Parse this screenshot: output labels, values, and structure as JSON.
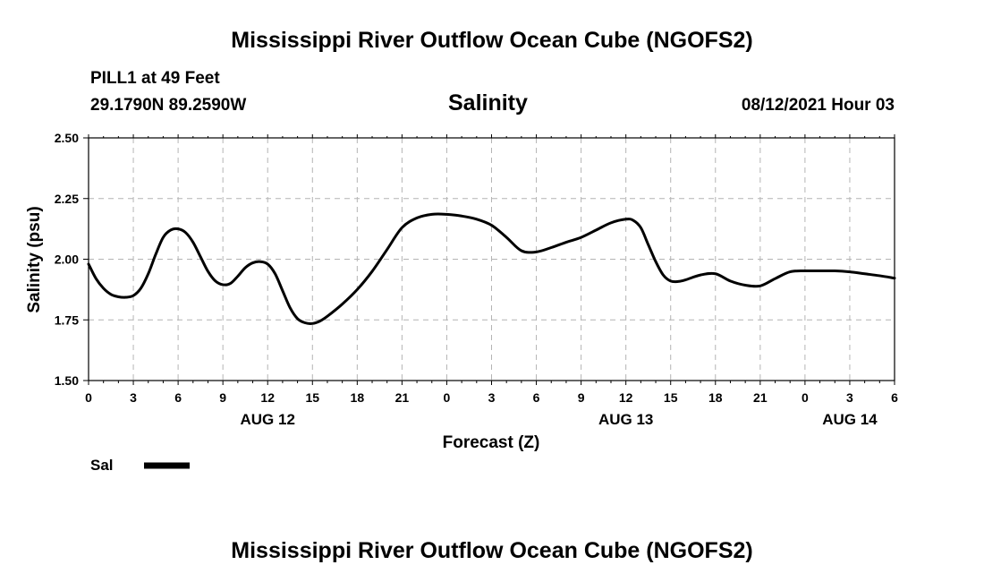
{
  "header": {
    "title": "Mississippi River Outflow Ocean Cube (NGOFS2)",
    "station": "PILL1 at 49 Feet",
    "coords": "29.1790N  89.2590W",
    "datetime": "08/12/2021 Hour 03"
  },
  "footer": {
    "title": "Mississippi River Outflow Ocean Cube (NGOFS2)"
  },
  "chart_data": {
    "type": "line",
    "title": "Salinity",
    "xlabel": "Forecast (Z)",
    "ylabel": "Salinity (psu)",
    "xlim": [
      0,
      54
    ],
    "ylim": [
      1.5,
      2.5
    ],
    "grid": true,
    "x_ticks": [
      0,
      3,
      6,
      9,
      12,
      15,
      18,
      21,
      24,
      27,
      30,
      33,
      36,
      39,
      42,
      45,
      48,
      51,
      54
    ],
    "x_tick_labels": [
      "0",
      "3",
      "6",
      "9",
      "12",
      "15",
      "18",
      "21",
      "0",
      "3",
      "6",
      "9",
      "12",
      "15",
      "18",
      "21",
      "0",
      "3",
      "6"
    ],
    "y_ticks": [
      1.5,
      1.75,
      2.0,
      2.25,
      2.5
    ],
    "y_tick_labels": [
      "1.50",
      "1.75",
      "2.00",
      "2.25",
      "2.50"
    ],
    "date_labels": [
      {
        "label": "AUG 12",
        "x": 12
      },
      {
        "label": "AUG 13",
        "x": 36
      },
      {
        "label": "AUG 14",
        "x": 51
      }
    ],
    "legend": {
      "entries": [
        "Sal"
      ],
      "position": "bottom-left"
    },
    "series": [
      {
        "name": "Sal",
        "x": [
          0,
          0.5,
          1,
          1.5,
          2,
          2.5,
          3,
          3.5,
          4,
          4.5,
          5,
          5.5,
          6,
          6.5,
          7,
          7.5,
          8,
          8.5,
          9,
          9.5,
          10,
          10.5,
          11,
          11.5,
          12,
          12.5,
          13,
          13.5,
          14,
          14.5,
          15,
          15.5,
          16,
          17,
          18,
          19,
          20,
          21,
          22,
          23,
          24,
          25,
          26,
          27,
          28,
          29,
          30,
          31,
          32,
          33,
          34,
          35,
          36,
          36.5,
          37,
          37.5,
          38,
          38.5,
          39,
          39.5,
          40,
          41,
          42,
          43,
          44,
          45,
          46,
          47,
          48,
          49,
          50,
          51,
          52,
          53,
          54
        ],
        "values": [
          1.98,
          1.92,
          1.88,
          1.855,
          1.845,
          1.843,
          1.85,
          1.88,
          1.94,
          2.02,
          2.09,
          2.12,
          2.125,
          2.11,
          2.07,
          2.01,
          1.95,
          1.91,
          1.895,
          1.9,
          1.93,
          1.965,
          1.985,
          1.99,
          1.98,
          1.94,
          1.87,
          1.8,
          1.755,
          1.738,
          1.735,
          1.745,
          1.765,
          1.815,
          1.875,
          1.95,
          2.04,
          2.13,
          2.17,
          2.185,
          2.185,
          2.178,
          2.165,
          2.14,
          2.09,
          2.035,
          2.03,
          2.048,
          2.07,
          2.09,
          2.12,
          2.15,
          2.165,
          2.16,
          2.13,
          2.06,
          1.99,
          1.935,
          1.91,
          1.908,
          1.915,
          1.935,
          1.94,
          1.91,
          1.893,
          1.89,
          1.92,
          1.948,
          1.952,
          1.952,
          1.952,
          1.948,
          1.94,
          1.932,
          1.922
        ]
      }
    ]
  }
}
